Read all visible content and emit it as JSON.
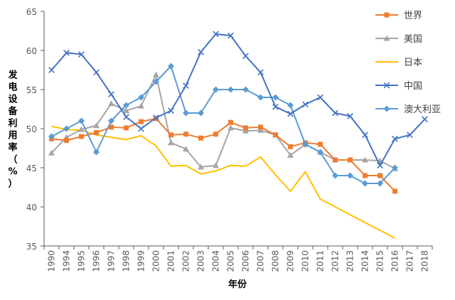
{
  "chart_data": {
    "type": "line",
    "xlabel": "年份",
    "ylabel": "发电设备利用率（%）",
    "ylim": [
      35,
      65
    ],
    "yticks": [
      35,
      40,
      45,
      50,
      55,
      60,
      65
    ],
    "grid": false,
    "legend_position": "right",
    "categories": [
      "1990",
      "1994",
      "1995",
      "1996",
      "1997",
      "1998",
      "1999",
      "2000",
      "2001",
      "2002",
      "2003",
      "2004",
      "2005",
      "2006",
      "2007",
      "2008",
      "2009",
      "2010",
      "2011",
      "2012",
      "2013",
      "2014",
      "2015",
      "2016",
      "2017",
      "2018"
    ],
    "series": [
      {
        "name": "世界",
        "color": "#ED7D31",
        "marker": "square",
        "values": [
          48.7,
          48.5,
          49.0,
          49.5,
          50.2,
          50.1,
          50.9,
          51.3,
          49.2,
          49.3,
          48.8,
          49.3,
          50.8,
          50.1,
          50.2,
          49.2,
          47.7,
          48.2,
          48.0,
          46.0,
          46.0,
          44.0,
          44.0,
          42.0,
          null,
          null
        ]
      },
      {
        "name": "美国",
        "color": "#A5A5A5",
        "marker": "triangle",
        "values": [
          46.9,
          48.9,
          49.9,
          50.4,
          53.2,
          52.3,
          52.9,
          56.9,
          48.2,
          47.4,
          45.1,
          45.3,
          50.1,
          49.7,
          49.8,
          49.2,
          46.6,
          48.0,
          47.0,
          46.0,
          46.0,
          46.0,
          45.9,
          44.9,
          null,
          null
        ]
      },
      {
        "name": "日本",
        "color": "#FFC000",
        "marker": "none",
        "values": [
          50.3,
          49.9,
          49.8,
          49.2,
          48.9,
          48.6,
          49.1,
          47.8,
          45.2,
          45.3,
          44.2,
          44.6,
          45.3,
          45.2,
          46.4,
          44.1,
          42.0,
          44.5,
          41.0,
          40.0,
          39.0,
          38.0,
          37.0,
          36.0,
          null,
          null
        ]
      },
      {
        "name": "中国",
        "color": "#4472C4",
        "marker": "x",
        "values": [
          57.5,
          59.7,
          59.5,
          57.2,
          54.4,
          51.5,
          50.0,
          51.4,
          52.3,
          55.5,
          59.8,
          62.1,
          61.9,
          59.3,
          57.2,
          52.8,
          51.9,
          53.1,
          54.0,
          52.0,
          51.6,
          49.2,
          45.3,
          48.7,
          49.2,
          51.2
        ]
      },
      {
        "name": "澳大利亚",
        "color": "#5B9BD5",
        "marker": "diamond",
        "values": [
          49.0,
          50.0,
          51.0,
          47.0,
          51.0,
          53.0,
          54.0,
          56.0,
          58.0,
          52.0,
          52.0,
          55.0,
          55.0,
          55.0,
          54.0,
          54.0,
          53.0,
          48.0,
          47.0,
          44.0,
          44.0,
          43.0,
          43.0,
          45.0,
          null,
          null
        ]
      }
    ]
  }
}
